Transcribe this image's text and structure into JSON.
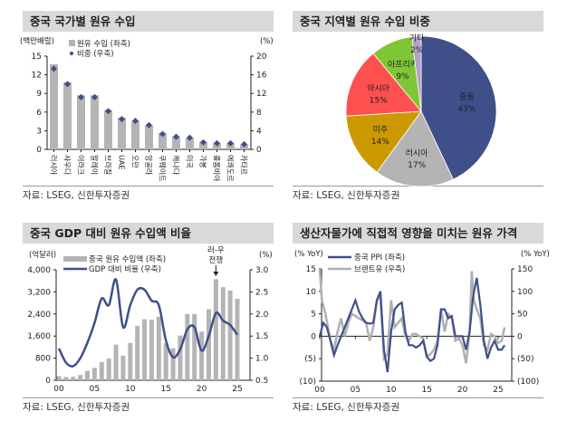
{
  "source": "자료: LSEG, 신한투자증권",
  "colors": {
    "navy": "#3f4f8a",
    "gray": "#b4b4b4",
    "brent": "#b0b0b0"
  },
  "chart_data": [
    {
      "type": "bar",
      "title": "중국 국가별 원유 수입",
      "ylabel_left": "(백만배럴)",
      "ylabel_right": "(%)",
      "categories": [
        "러시아",
        "사우디",
        "이라크",
        "말레이",
        "브라질",
        "UAE",
        "오만",
        "앙골라",
        "쿠웨이트",
        "캐나다",
        "미국",
        "가봉",
        "콜롬비아",
        "에콰도르",
        "카타르"
      ],
      "series": [
        {
          "name": "원유 수입 (좌축)",
          "axis": "left",
          "type": "bar",
          "values": [
            13.7,
            10.8,
            8.7,
            8.7,
            6.3,
            5.1,
            4.6,
            3.9,
            2.6,
            2.1,
            1.9,
            1.2,
            1.0,
            1.0,
            0.8
          ]
        },
        {
          "name": "비중 (우축)",
          "axis": "right",
          "type": "scatter",
          "values": [
            17.3,
            14.0,
            11.2,
            11.2,
            8.2,
            6.5,
            6.1,
            5.2,
            3.3,
            2.7,
            2.5,
            1.5,
            1.3,
            1.3,
            1.1
          ]
        }
      ],
      "ylim_left": [
        0,
        15
      ],
      "yticks_left": [
        "0",
        "3",
        "6",
        "9",
        "12",
        "15"
      ],
      "ylim_right": [
        0,
        20
      ],
      "yticks_right": [
        "0",
        "4",
        "8",
        "12",
        "16",
        "20"
      ]
    },
    {
      "type": "pie",
      "title": "중국 지역별 원유 수입 비중",
      "slices": [
        {
          "label": "중동",
          "value": 43,
          "text": "43%",
          "color": "#3f4f8a"
        },
        {
          "label": "러시아",
          "value": 17,
          "text": "17%",
          "color": "#b4b4b4"
        },
        {
          "label": "미주",
          "value": 14,
          "text": "14%",
          "color": "#cc9900"
        },
        {
          "label": "아시아",
          "value": 15,
          "text": "15%",
          "color": "#ff5050"
        },
        {
          "label": "아프리카",
          "value": 9,
          "text": "9%",
          "color": "#7fc636"
        },
        {
          "label": "기타",
          "value": 2,
          "text": "2%",
          "color": "#b1a0c7"
        }
      ]
    },
    {
      "type": "bar",
      "title": "중국 GDP 대비 원유 수입액 비율",
      "ylabel_left": "(억달러)",
      "ylabel_right": "(%)",
      "x": [
        2000,
        2001,
        2002,
        2003,
        2004,
        2005,
        2006,
        2007,
        2008,
        2009,
        2010,
        2011,
        2012,
        2013,
        2014,
        2015,
        2016,
        2017,
        2018,
        2019,
        2020,
        2021,
        2022,
        2023,
        2024,
        2025
      ],
      "series": [
        {
          "name": "중국 원유 수입액 (좌축)",
          "axis": "left",
          "type": "bar",
          "values": [
            150,
            120,
            125,
            190,
            340,
            450,
            660,
            790,
            1290,
            890,
            1350,
            1970,
            2210,
            2190,
            2300,
            1340,
            1160,
            1620,
            2400,
            2400,
            1760,
            2570,
            3660,
            3370,
            3250,
            2950
          ]
        },
        {
          "name": "GDP 대비 비율 (우축)",
          "axis": "right",
          "type": "line",
          "values": [
            1.22,
            0.9,
            0.82,
            1.0,
            1.35,
            1.8,
            2.35,
            2.2,
            2.78,
            1.7,
            2.2,
            2.55,
            2.55,
            2.3,
            2.2,
            1.4,
            1.02,
            1.2,
            1.65,
            1.7,
            1.17,
            1.5,
            2.02,
            1.85,
            1.75,
            1.53
          ]
        }
      ],
      "ylim_left": [
        0,
        4000
      ],
      "yticks_left": [
        "0",
        "800",
        "1,600",
        "2,400",
        "3,200",
        "4,000"
      ],
      "ylim_right": [
        0.5,
        3.0
      ],
      "yticks_right": [
        "0.5",
        "1.0",
        "1.5",
        "2.0",
        "2.5",
        "3.0"
      ],
      "xticks": [
        "00",
        "05",
        "10",
        "15",
        "20",
        "25"
      ],
      "annotation": {
        "text": [
          "러-우",
          "전쟁"
        ],
        "x": 2022
      }
    },
    {
      "type": "line",
      "title": "생산자물가에 직접적 영향을 미치는 원유 가격",
      "ylabel_left": "(% YoY)",
      "ylabel_right": "(% YoY)",
      "series": [
        {
          "name": "중국 PPI (좌축)",
          "axis": "left",
          "x": [
            2000,
            2000.5,
            2001,
            2001.5,
            2002,
            2002.5,
            2003,
            2003.5,
            2004,
            2004.5,
            2005,
            2005.5,
            2006,
            2006.5,
            2007,
            2007.5,
            2008,
            2008.5,
            2009,
            2009.5,
            2010,
            2010.5,
            2011,
            2011.5,
            2012,
            2012.5,
            2013,
            2013.5,
            2014,
            2014.5,
            2015,
            2015.5,
            2016,
            2016.5,
            2017,
            2017.5,
            2018,
            2018.5,
            2019,
            2019.5,
            2020,
            2020.5,
            2021,
            2021.5,
            2022,
            2022.5,
            2023,
            2023.5,
            2024,
            2024.5,
            2025,
            2025.5,
            2025.9
          ],
          "values": [
            0,
            3,
            2,
            -1,
            -4.2,
            -2,
            0,
            2,
            4,
            6,
            8,
            5.5,
            4,
            3,
            2.8,
            3,
            8,
            10,
            -3,
            -8,
            1,
            6,
            7,
            7.5,
            1,
            -2,
            -2,
            -2.5,
            -2,
            -1,
            -4.5,
            -5.5,
            -5,
            -2,
            6,
            6,
            4,
            4.5,
            0,
            0,
            0,
            -3,
            1,
            9,
            13,
            7,
            -1,
            -5,
            -2.5,
            -1,
            -3,
            -3,
            -2
          ]
        },
        {
          "name": "브렌트유 (우축)",
          "axis": "right",
          "x": [
            2000,
            2000.3,
            2000.8,
            2001.5,
            2002,
            2002.5,
            2003,
            2003.5,
            2004,
            2004.5,
            2005,
            2005.5,
            2006,
            2006.5,
            2007,
            2007.5,
            2008,
            2008.5,
            2009,
            2009.5,
            2010,
            2010.5,
            2011,
            2011.5,
            2012,
            2012.5,
            2013,
            2013.5,
            2014,
            2014.5,
            2015,
            2015.5,
            2016,
            2016.5,
            2017,
            2017.5,
            2018,
            2018.5,
            2019,
            2019.5,
            2020,
            2020.5,
            2021,
            2021.3,
            2021.6,
            2022,
            2022.5,
            2023,
            2023.5,
            2024,
            2024.5,
            2025,
            2025.5,
            2025.9
          ],
          "values": [
            150,
            80,
            50,
            -10,
            -30,
            10,
            40,
            0,
            30,
            50,
            45,
            40,
            35,
            30,
            -10,
            20,
            80,
            90,
            -50,
            -40,
            80,
            20,
            30,
            40,
            0,
            -10,
            5,
            5,
            0,
            -5,
            -45,
            -40,
            -30,
            -10,
            60,
            10,
            50,
            40,
            -10,
            -5,
            -20,
            -60,
            10,
            145,
            80,
            60,
            40,
            -20,
            -30,
            5,
            0,
            -15,
            -10,
            20
          ]
        }
      ],
      "ylim_left": [
        -10,
        15
      ],
      "yticks_left": [
        "(10)",
        "(5)",
        "0",
        "5",
        "10",
        "15"
      ],
      "ylim_right": [
        -100,
        150
      ],
      "yticks_right": [
        "(100)",
        "(50)",
        "0",
        "50",
        "100",
        "150"
      ],
      "xticks": [
        "00",
        "05",
        "10",
        "15",
        "20",
        "25"
      ]
    }
  ]
}
